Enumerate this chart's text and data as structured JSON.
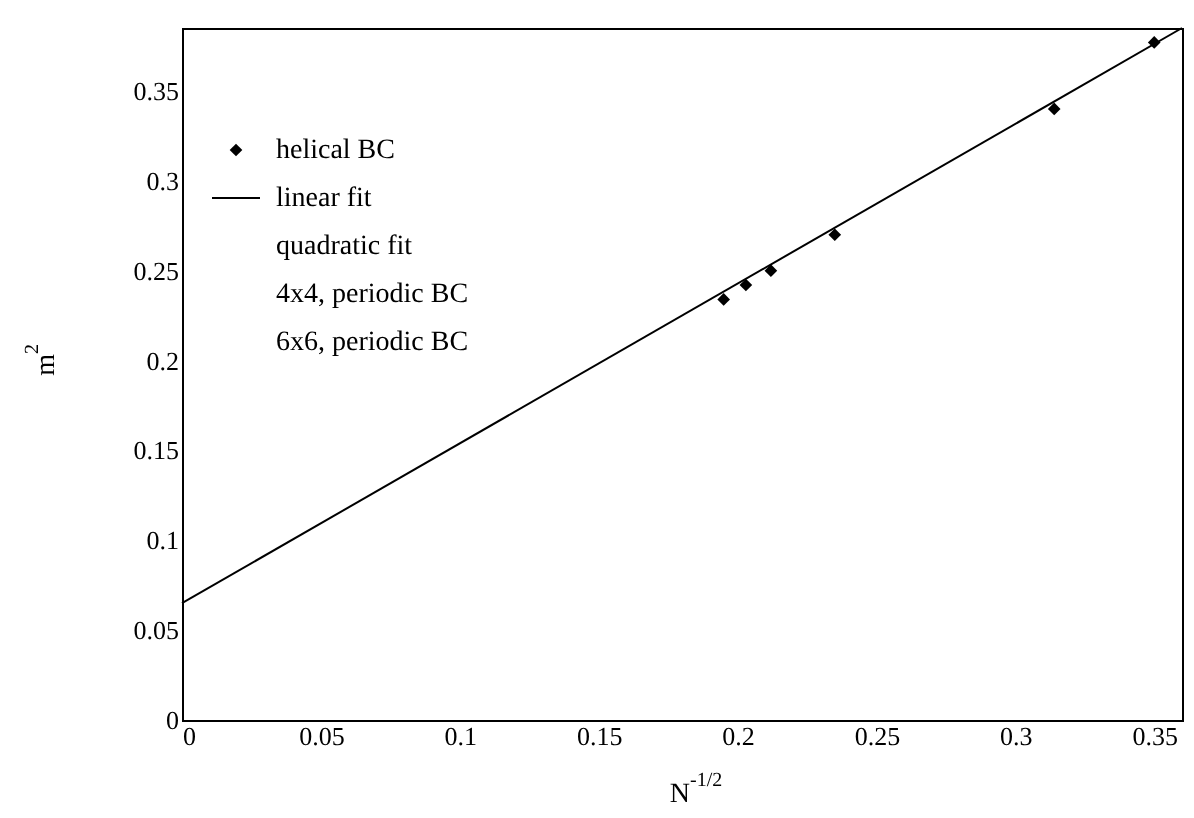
{
  "chart_data": {
    "type": "scatter",
    "xlabel": "N$^{-1/2}$",
    "ylabel": "m$^{2}$",
    "xlim": [
      0,
      0.36
    ],
    "ylim": [
      0,
      0.385
    ],
    "xticks": [
      0,
      0.05,
      0.1,
      0.15,
      0.2,
      0.25,
      0.3,
      0.35
    ],
    "yticks": [
      0,
      0.05,
      0.1,
      0.15,
      0.2,
      0.25,
      0.3,
      0.35
    ],
    "grid": false,
    "legend": "top left",
    "series": [
      {
        "name": "helical BC",
        "color": "#000000",
        "marker": "diamond",
        "x": [
          0.195,
          0.203,
          0.212,
          0.235,
          0.314,
          0.35
        ],
        "values": [
          0.234,
          0.242,
          0.25,
          0.27,
          0.34,
          0.377
        ]
      },
      {
        "name": "linear fit",
        "type": "line",
        "color": "#000000",
        "line_style": "solid",
        "x": [
          0,
          0.36
        ],
        "values": [
          0.065,
          0.385
        ]
      }
    ],
    "annotations": [
      "quadratic fit",
      "4x4, periodic BC",
      "6x6, periodic BC"
    ]
  }
}
